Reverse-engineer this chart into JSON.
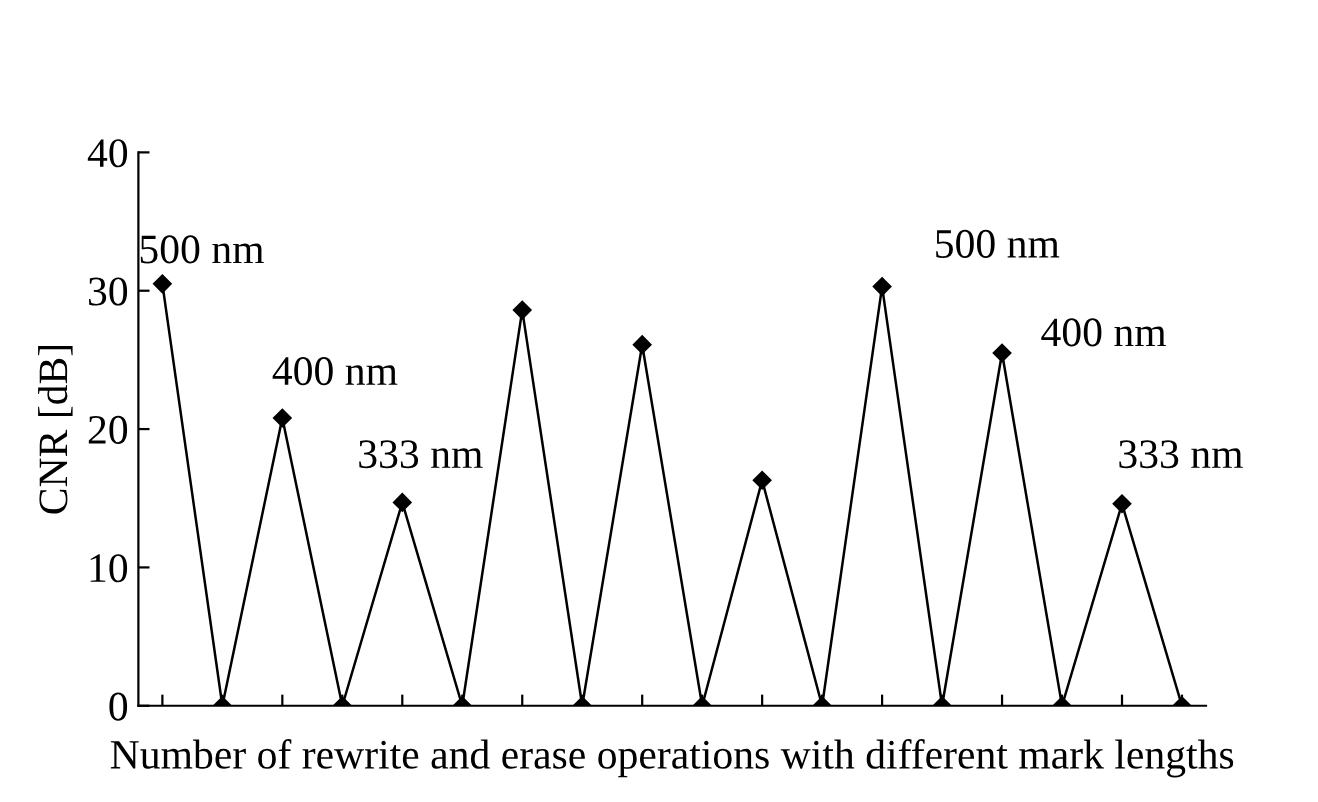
{
  "chart_data": {
    "type": "line",
    "xlabel": "Number of rewrite and erase operations with different mark lengths",
    "ylabel": "CNR [dB]",
    "categories": [
      null,
      null,
      null,
      null,
      null,
      null,
      null,
      null,
      null,
      null,
      null,
      null,
      null,
      null,
      null,
      null,
      null,
      null
    ],
    "series": [
      {
        "color": "#000000",
        "values": [
          30.5,
          0,
          20.8,
          0,
          14.7,
          0,
          28.6,
          0,
          26.1,
          0,
          16.3,
          0,
          30.3,
          0,
          25.5,
          0,
          14.6,
          0
        ]
      }
    ],
    "ylim": [
      0,
      40
    ],
    "yticks": [
      0,
      10,
      20,
      30,
      40
    ],
    "tick_labels": "y",
    "grid": false,
    "legend": false,
    "marker": "diamond",
    "line_style": "solid",
    "annotations": [
      "500 nm",
      "400 nm",
      "333 nm",
      "500 nm",
      "400 nm",
      "333 nm"
    ]
  }
}
